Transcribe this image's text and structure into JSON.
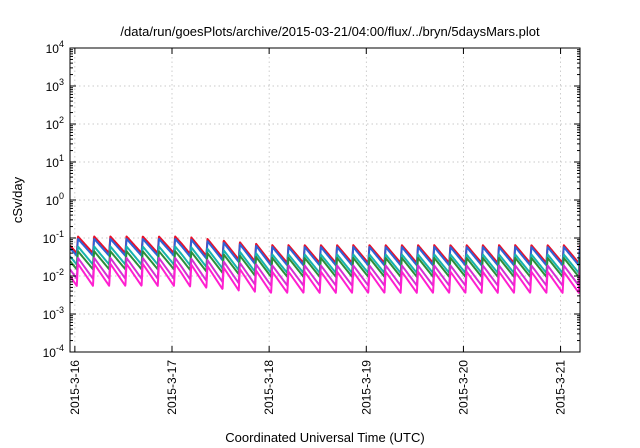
{
  "chart_data": {
    "type": "line",
    "title": "/data/run/goesPlots/archive/2015-03-21/04:00/flux/../bryn/5daysMars.plot",
    "xlabel": "Coordinated Universal Time (UTC)",
    "ylabel": "cSv/day",
    "yscale": "log",
    "ylim": [
      0.0001,
      10000
    ],
    "xlim": [
      -0.05,
      5.2
    ],
    "y_ticks": [
      {
        "value": 0.0001,
        "base": "10",
        "exp": "-4"
      },
      {
        "value": 0.001,
        "base": "10",
        "exp": "-3"
      },
      {
        "value": 0.01,
        "base": "10",
        "exp": "-2"
      },
      {
        "value": 0.1,
        "base": "10",
        "exp": "-1"
      },
      {
        "value": 1,
        "base": "10",
        "exp": "0"
      },
      {
        "value": 10,
        "base": "10",
        "exp": "1"
      },
      {
        "value": 100,
        "base": "10",
        "exp": "2"
      },
      {
        "value": 1000,
        "base": "10",
        "exp": "3"
      },
      {
        "value": 10000,
        "base": "10",
        "exp": "4"
      }
    ],
    "x_ticks": [
      {
        "value": 0,
        "label": "2015-3-16"
      },
      {
        "value": 1,
        "label": "2015-3-17"
      },
      {
        "value": 2,
        "label": "2015-3-18"
      },
      {
        "value": 3,
        "label": "2015-3-19"
      },
      {
        "value": 4,
        "label": "2015-3-20"
      },
      {
        "value": 5,
        "label": "2015-3-21"
      }
    ],
    "grid": true,
    "sawtooth_period_days": 0.1667,
    "series": [
      {
        "color": "#e8102a",
        "peak": 0.11,
        "trough": 0.04,
        "peak_late": 0.065,
        "trough_late": 0.022
      },
      {
        "color": "#2f62d6",
        "peak": 0.095,
        "trough": 0.034,
        "peak_late": 0.058,
        "trough_late": 0.019
      },
      {
        "color": "#18b3b0",
        "peak": 0.06,
        "trough": 0.02,
        "peak_late": 0.037,
        "trough_late": 0.012
      },
      {
        "color": "#2a8f3a",
        "peak": 0.045,
        "trough": 0.015,
        "peak_late": 0.03,
        "trough_late": 0.0095
      },
      {
        "color": "#d62fd3",
        "peak": 0.03,
        "trough": 0.0085,
        "peak_late": 0.019,
        "trough_late": 0.0056
      },
      {
        "color": "#ff1fd0",
        "peak": 0.021,
        "trough": 0.0055,
        "peak_late": 0.013,
        "trough_late": 0.0036
      }
    ]
  }
}
